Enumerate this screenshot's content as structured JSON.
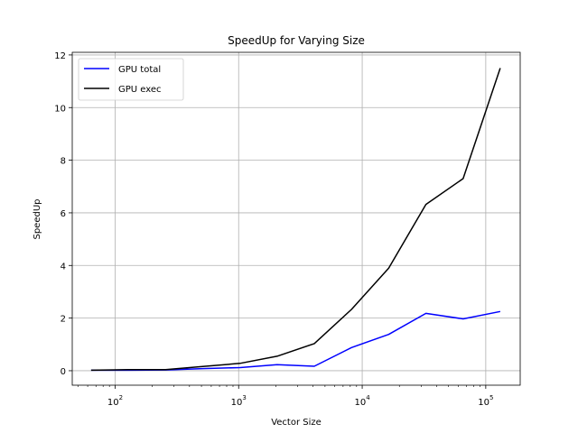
{
  "chart_data": {
    "type": "line",
    "title": "SpeedUp for Varying Size",
    "xlabel": "Vector Size",
    "ylabel": "SpeedUp",
    "xscale": "log",
    "xlim": [
      45,
      190000
    ],
    "ylim": [
      -0.55,
      12.1
    ],
    "x_tick_labels": [
      "10",
      "10",
      "10",
      "10"
    ],
    "x_tick_exponents": [
      "2",
      "3",
      "4",
      "5"
    ],
    "x_tick_values": [
      100,
      1000,
      10000,
      100000
    ],
    "y_ticks": [
      0,
      2,
      4,
      6,
      8,
      10,
      12
    ],
    "y_tick_labels": [
      "0",
      "2",
      "4",
      "6",
      "8",
      "10",
      "12"
    ],
    "grid": true,
    "legend_position": "top-left",
    "x": [
      64,
      128,
      256,
      512,
      1024,
      2048,
      4096,
      8192,
      16384,
      32768,
      65536,
      131072
    ],
    "series": [
      {
        "name": "GPU total",
        "color": "#0000ff",
        "values": [
          0.02,
          0.02,
          0.03,
          0.08,
          0.12,
          0.23,
          0.17,
          0.88,
          1.38,
          2.18,
          1.97,
          2.25
        ]
      },
      {
        "name": "GPU exec",
        "color": "#000000",
        "values": [
          0.02,
          0.04,
          0.04,
          0.16,
          0.28,
          0.55,
          1.03,
          2.33,
          3.9,
          6.32,
          7.3,
          11.5
        ]
      }
    ]
  }
}
